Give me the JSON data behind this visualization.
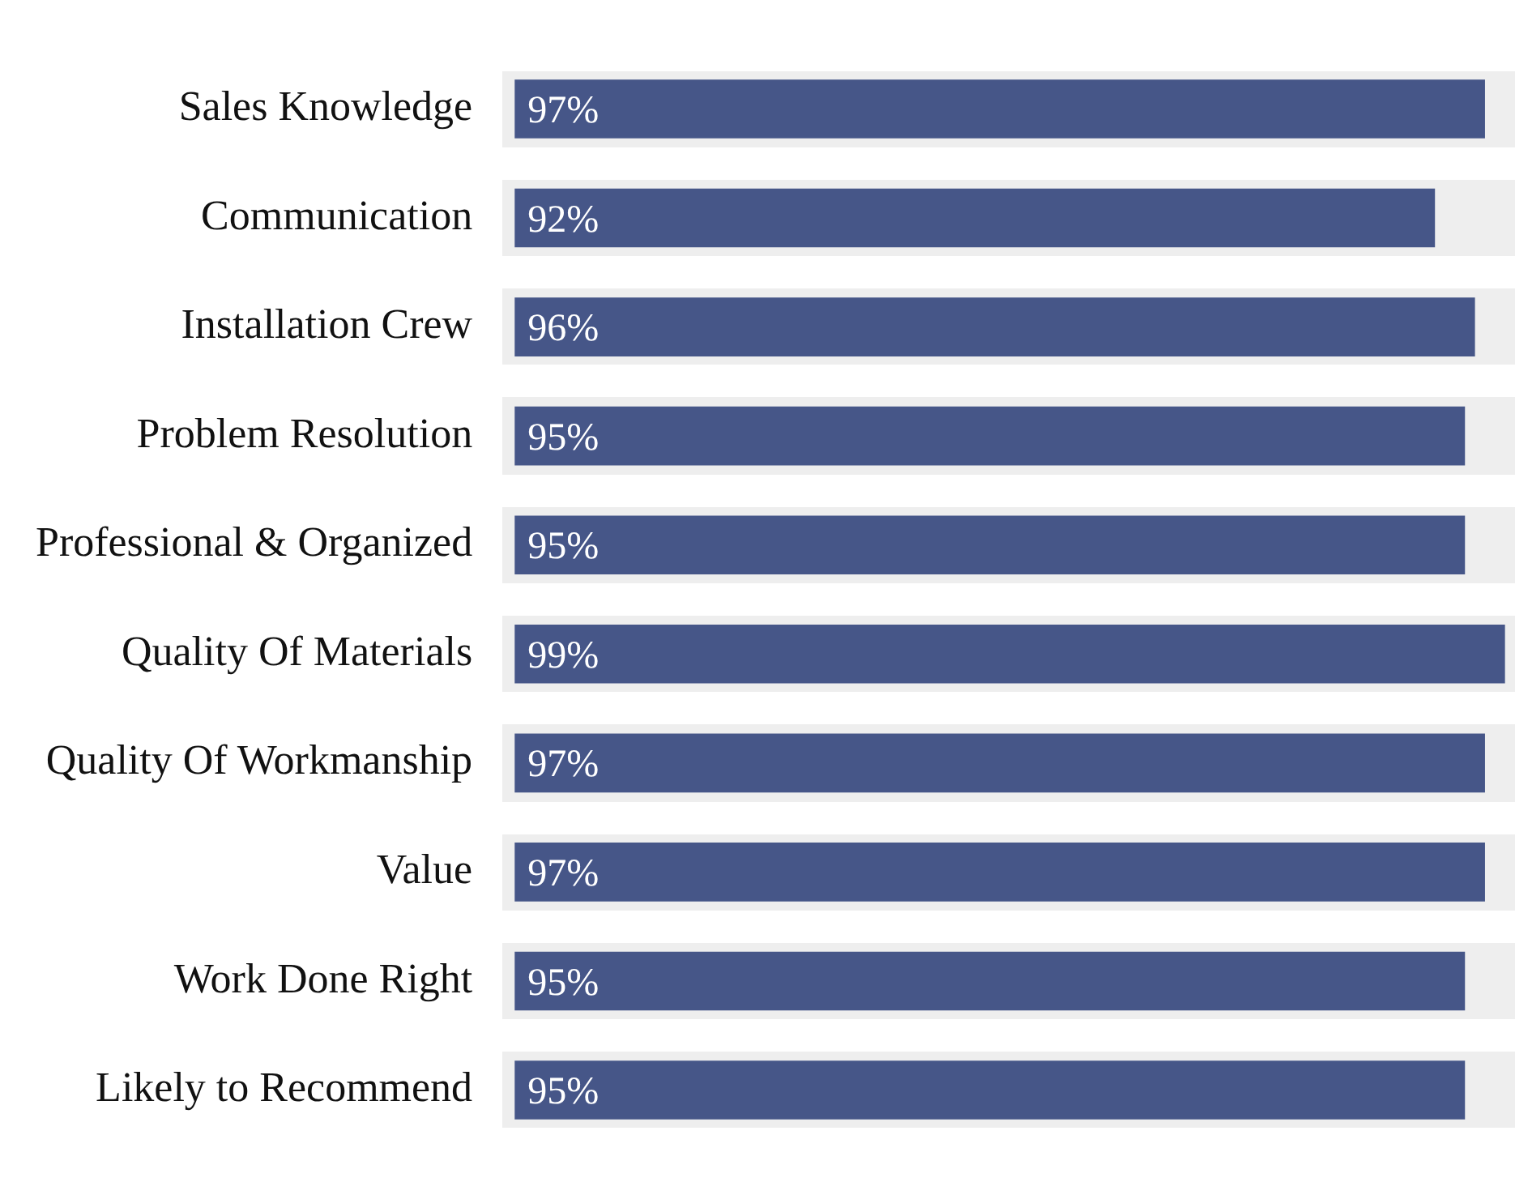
{
  "chart_data": {
    "type": "bar",
    "orientation": "horizontal",
    "categories": [
      "Sales Knowledge",
      "Communication",
      "Installation Crew",
      "Problem Resolution",
      "Professional & Organized",
      "Quality Of Materials",
      "Quality Of Workmanship",
      "Value",
      "Work Done Right",
      "Likely to Recommend"
    ],
    "values": [
      97,
      92,
      96,
      95,
      95,
      99,
      97,
      97,
      95,
      95
    ],
    "value_labels": [
      "97%",
      "92%",
      "96%",
      "95%",
      "95%",
      "99%",
      "97%",
      "97%",
      "95%",
      "95%"
    ],
    "color": "#465688",
    "tick_labels": "y",
    "legend": false
  }
}
